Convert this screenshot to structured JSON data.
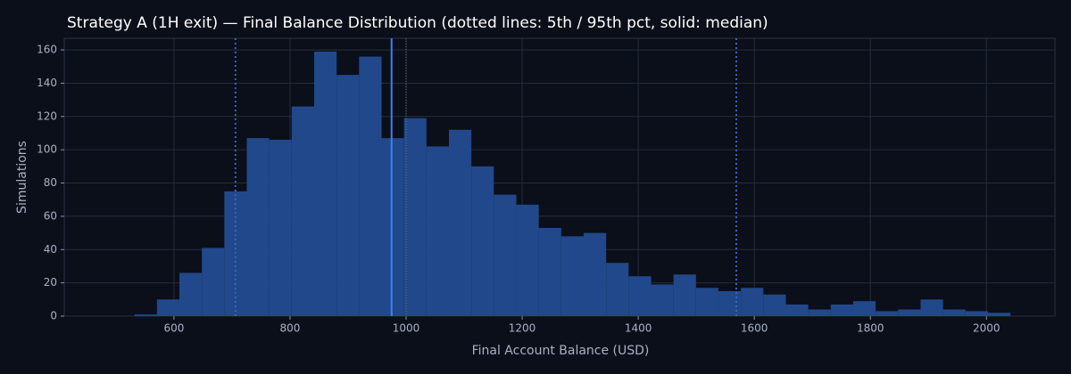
{
  "chart_data": {
    "type": "histogram",
    "title": "Strategy A (1H exit) — Final Balance Distribution (dotted lines: 5th / 95th pct, solid: median)",
    "x_label": "Final Account Balance (USD)",
    "y_label": "Simulations",
    "bins": [
      532.0,
      570.7,
      609.4,
      648.1,
      686.8,
      725.5,
      764.2,
      802.9,
      841.6,
      880.3,
      919.0,
      957.7,
      996.4,
      1035.1,
      1073.8,
      1112.5,
      1151.2,
      1189.9,
      1228.6,
      1267.3,
      1306.0,
      1344.7,
      1383.4,
      1422.1,
      1460.8,
      1499.5,
      1538.2,
      1576.9,
      1615.6,
      1654.3,
      1693.0,
      1731.7,
      1770.4,
      1809.1,
      1847.8,
      1886.5,
      1925.2,
      1963.9,
      2002.6,
      2041.3
    ],
    "counts": [
      1,
      10,
      26,
      41,
      75,
      107,
      106,
      126,
      159,
      145,
      156,
      107,
      119,
      102,
      112,
      90,
      73,
      67,
      53,
      48,
      50,
      32,
      24,
      19,
      25,
      17,
      15,
      17,
      13,
      7,
      4,
      7,
      9,
      3,
      4,
      10,
      4,
      3,
      2
    ],
    "color": "#21488a",
    "percentile_lines": {
      "p5": 706,
      "p95": 1569,
      "color": "#3b63b8"
    },
    "median_line": {
      "value": 975,
      "color": "#3b82f6"
    },
    "reference_line": {
      "value": 1000,
      "color": "#6b7280"
    },
    "xlim": [
      411,
      2118
    ],
    "ylim": [
      0,
      167
    ],
    "xticks": [
      600,
      800,
      1000,
      1200,
      1400,
      1600,
      1800,
      2000
    ],
    "yticks": [
      0,
      20,
      40,
      60,
      80,
      100,
      120,
      140,
      160
    ],
    "grid": true
  }
}
